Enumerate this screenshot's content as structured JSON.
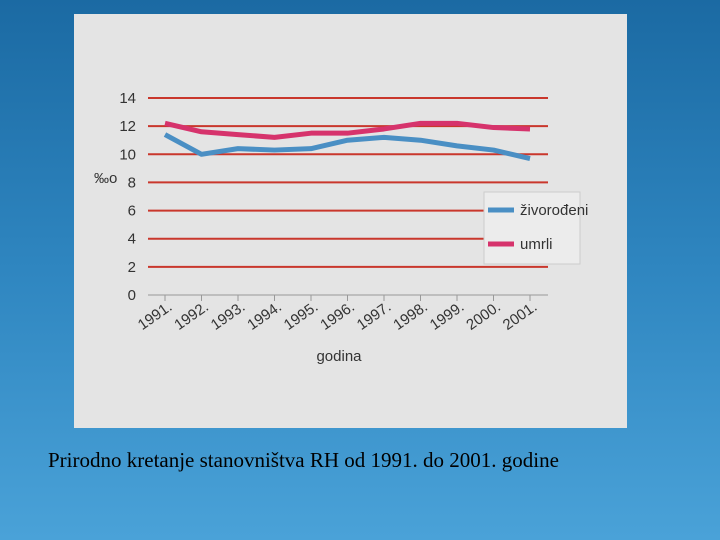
{
  "chart_data": {
    "type": "line",
    "ylabel": "‰o",
    "xlabel": "godina",
    "categories": [
      "1991.",
      "1992.",
      "1993.",
      "1994.",
      "1995.",
      "1996.",
      "1997.",
      "1998.",
      "1999.",
      "2000.",
      "2001."
    ],
    "series": [
      {
        "name": "živorođeni",
        "color": "#4a8fc4",
        "values": [
          11.4,
          10.0,
          10.4,
          10.3,
          10.4,
          11.0,
          11.2,
          11.0,
          10.6,
          10.3,
          9.7
        ]
      },
      {
        "name": "umrli",
        "color": "#d6336c",
        "values": [
          12.2,
          11.6,
          11.4,
          11.2,
          11.5,
          11.5,
          11.8,
          12.2,
          12.2,
          11.9,
          11.8
        ]
      }
    ],
    "ylim": [
      0,
      14
    ],
    "yticks": [
      0,
      2,
      4,
      6,
      8,
      10,
      12,
      14
    ],
    "grid": true,
    "grid_color": "#c9372c",
    "legend": "right"
  },
  "caption": "Prirodno kretanje stanovništva RH od 1991. do 2001. godine"
}
